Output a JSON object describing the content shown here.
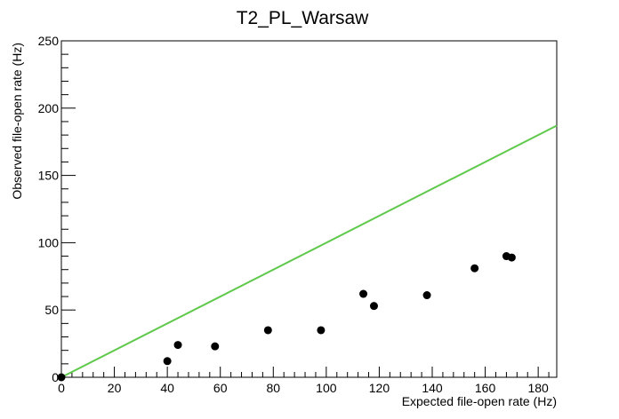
{
  "chart_data": {
    "type": "scatter",
    "title": "T2_PL_Warsaw",
    "xlabel": "Expected file-open rate (Hz)",
    "ylabel": "Observed file-open rate (Hz)",
    "xlim": [
      0,
      187
    ],
    "ylim": [
      0,
      250
    ],
    "x_ticks": [
      0,
      20,
      40,
      60,
      80,
      100,
      120,
      140,
      160,
      180
    ],
    "y_ticks": [
      0,
      50,
      100,
      150,
      200,
      250
    ],
    "grid": false,
    "legend": "none",
    "points": {
      "x": [
        0,
        40,
        44,
        58,
        78,
        98,
        114,
        118,
        138,
        156,
        168,
        170
      ],
      "y": [
        0,
        12,
        24,
        23,
        35,
        35,
        62,
        53,
        61,
        81,
        90,
        89
      ],
      "color": "#000000"
    },
    "reference_line": {
      "x": [
        0,
        187
      ],
      "y": [
        0,
        187
      ],
      "color": "#5ec94a"
    }
  }
}
